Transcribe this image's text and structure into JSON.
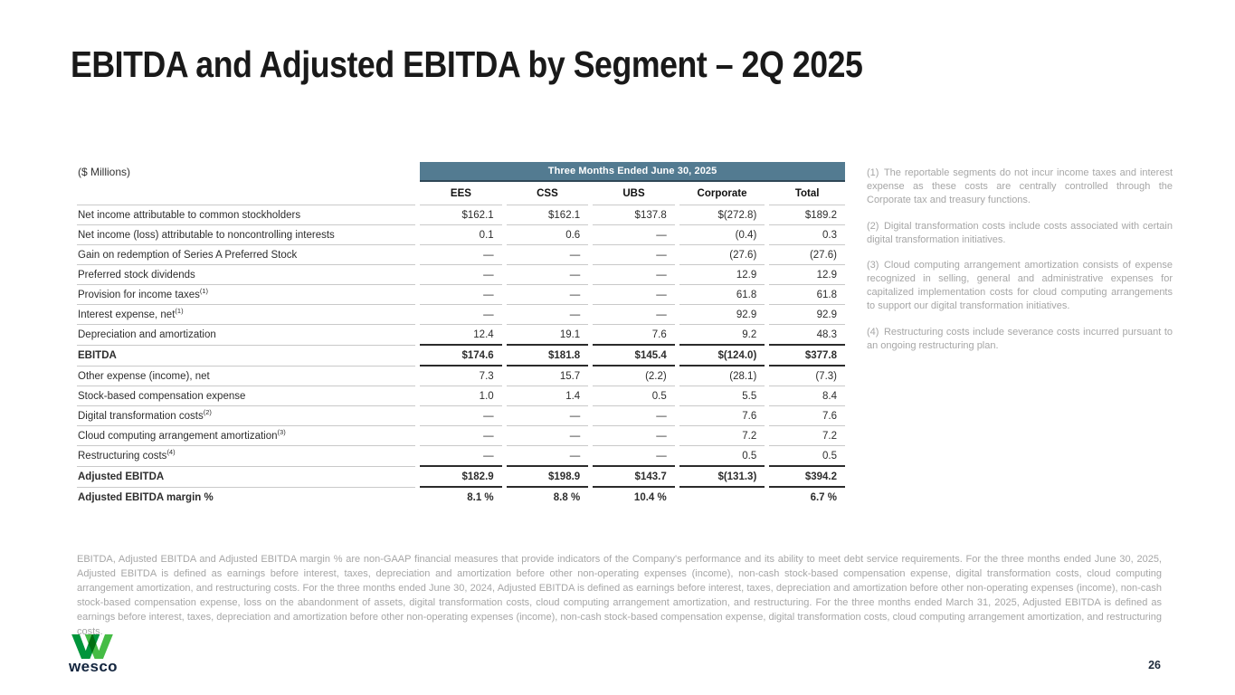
{
  "slide": {
    "title": "EBITDA and Adjusted EBITDA by Segment – 2Q 2025",
    "page_number": "26",
    "logo_text": "wesco"
  },
  "table": {
    "units_label": "($ Millions)",
    "period_header": "Three Months Ended June 30, 2025",
    "columns": [
      "EES",
      "CSS",
      "UBS",
      "Corporate",
      "Total"
    ],
    "rows": [
      {
        "label": "Net income attributable to common stockholders",
        "sup": "",
        "values": [
          "$162.1",
          "$162.1",
          "$137.8",
          "$(272.8)",
          "$189.2"
        ],
        "bold": false,
        "thick": false
      },
      {
        "label": "Net income (loss) attributable to noncontrolling interests",
        "sup": "",
        "values": [
          "0.1",
          "0.6",
          "—",
          "(0.4)",
          "0.3"
        ],
        "bold": false,
        "thick": false
      },
      {
        "label": "Gain on redemption of Series A Preferred Stock",
        "sup": "",
        "values": [
          "—",
          "—",
          "—",
          "(27.6)",
          "(27.6)"
        ],
        "bold": false,
        "thick": false
      },
      {
        "label": "Preferred stock dividends",
        "sup": "",
        "values": [
          "—",
          "—",
          "—",
          "12.9",
          "12.9"
        ],
        "bold": false,
        "thick": false
      },
      {
        "label": "Provision for income taxes",
        "sup": "(1)",
        "values": [
          "—",
          "—",
          "—",
          "61.8",
          "61.8"
        ],
        "bold": false,
        "thick": false
      },
      {
        "label": "Interest expense, net",
        "sup": "(1)",
        "values": [
          "—",
          "—",
          "—",
          "92.9",
          "92.9"
        ],
        "bold": false,
        "thick": false
      },
      {
        "label": "Depreciation and amortization",
        "sup": "",
        "values": [
          "12.4",
          "19.1",
          "7.6",
          "9.2",
          "48.3"
        ],
        "bold": false,
        "thick": false
      },
      {
        "label": "EBITDA",
        "sup": "",
        "values": [
          "$174.6",
          "$181.8",
          "$145.4",
          "$(124.0)",
          "$377.8"
        ],
        "bold": true,
        "thick": true
      },
      {
        "label": "Other expense (income), net",
        "sup": "",
        "values": [
          "7.3",
          "15.7",
          "(2.2)",
          "(28.1)",
          "(7.3)"
        ],
        "bold": false,
        "thick": true
      },
      {
        "label": "Stock-based compensation expense",
        "sup": "",
        "values": [
          "1.0",
          "1.4",
          "0.5",
          "5.5",
          "8.4"
        ],
        "bold": false,
        "thick": false
      },
      {
        "label": "Digital transformation costs",
        "sup": "(2)",
        "values": [
          "—",
          "—",
          "—",
          "7.6",
          "7.6"
        ],
        "bold": false,
        "thick": false
      },
      {
        "label": "Cloud computing arrangement amortization",
        "sup": "(3)",
        "values": [
          "—",
          "—",
          "—",
          "7.2",
          "7.2"
        ],
        "bold": false,
        "thick": false
      },
      {
        "label": "Restructuring costs",
        "sup": "(4)",
        "values": [
          "—",
          "—",
          "—",
          "0.5",
          "0.5"
        ],
        "bold": false,
        "thick": false
      },
      {
        "label": "Adjusted EBITDA",
        "sup": "",
        "values": [
          "$182.9",
          "$198.9",
          "$143.7",
          "$(131.3)",
          "$394.2"
        ],
        "bold": true,
        "thick": true
      },
      {
        "label": "Adjusted EBITDA margin %",
        "sup": "",
        "values": [
          "8.1 %",
          "8.8 %",
          "10.4 %",
          "",
          "6.7 %"
        ],
        "bold": true,
        "thick": true
      }
    ]
  },
  "footnotes": [
    {
      "num": "(1)",
      "text": "The reportable segments do not incur income taxes and interest expense as these costs are centrally controlled through the Corporate tax and treasury functions."
    },
    {
      "num": "(2)",
      "text": "Digital transformation costs include costs associated with certain digital transformation initiatives."
    },
    {
      "num": "(3)",
      "text": "Cloud computing arrangement amortization consists of expense recognized in selling, general and administrative expenses for capitalized implementation costs for cloud computing arrangements to support our digital transformation initiatives."
    },
    {
      "num": "(4)",
      "text": "Restructuring costs include severance costs incurred pursuant to an ongoing restructuring plan."
    }
  ],
  "disclaimer": "EBITDA, Adjusted EBITDA and Adjusted EBITDA margin % are non-GAAP financial measures that provide indicators of the Company's performance and its ability to meet debt service requirements. For the three months ended June 30, 2025, Adjusted EBITDA is defined as earnings before interest, taxes, depreciation and amortization before other non-operating expenses (income), non-cash stock-based compensation expense, digital transformation costs, cloud computing arrangement amortization, and restructuring costs. For the three months ended June 30, 2024, Adjusted EBITDA is defined as earnings before interest, taxes, depreciation and amortization before other non-operating expenses (income), non-cash stock-based compensation expense, loss on the abandonment of assets, digital transformation costs, cloud computing arrangement amortization, and restructuring. For the three months ended March 31, 2025, Adjusted EBITDA is defined as earnings before interest, taxes, depreciation and amortization before other non-operating expenses (income), non-cash stock-based compensation expense, digital transformation costs, cloud computing arrangement amortization, and restructuring costs.",
  "colors": {
    "banner_bg": "#537b91",
    "banner_border": "#2e4756",
    "thin_rule": "#c9c9c9",
    "thick_rule": "#2b2b2b",
    "footnote_text": "#a6a6a6",
    "logo_green_dark": "#00953b",
    "logo_green_bright": "#45bc45",
    "logo_navy": "#13253e"
  }
}
